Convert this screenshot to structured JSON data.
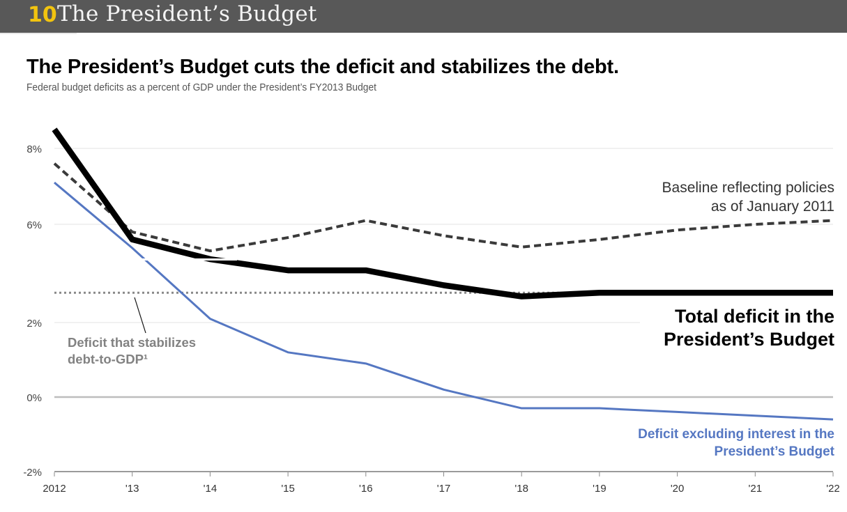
{
  "header": {
    "section_number": "10",
    "section_title": "The President’s Budget"
  },
  "headline": "The President’s Budget cuts the deficit and stabilizes the debt.",
  "subheadline": "Federal budget deficits as a percent of GDP under the President’s FY2013 Budget",
  "chart_data": {
    "type": "line",
    "title": "The President’s Budget cuts the deficit and stabilizes the debt.",
    "subtitle": "Federal budget deficits as a percent of GDP under the President’s FY2013 Budget",
    "xlabel": "",
    "ylabel": "",
    "x": [
      "2012",
      "'13",
      "'14",
      "'15",
      "'16",
      "'17",
      "'18",
      "'19",
      "'20",
      "'21",
      "'22"
    ],
    "y_ticks": [
      "8%",
      "6%",
      "2%",
      "0%",
      "-2%"
    ],
    "y_tick_values": [
      8,
      6,
      2,
      0,
      -2
    ],
    "ylim": [
      -2,
      8.5
    ],
    "grid": true,
    "series": [
      {
        "name": "Baseline reflecting policies as of January 2011",
        "style": "dashed",
        "color": "#3a3a3a",
        "values": [
          7.6,
          5.8,
          5.3,
          5.65,
          6.1,
          5.7,
          5.4,
          5.6,
          5.85,
          6.0,
          6.1
        ]
      },
      {
        "name": "Total deficit in the President’s Budget",
        "style": "thick-solid",
        "color": "#000000",
        "values": [
          8.5,
          5.6,
          3.7,
          3.4,
          3.4,
          3.0,
          2.7,
          2.8,
          2.8,
          2.8,
          2.8
        ]
      },
      {
        "name": "Deficit excluding interest in the President’s Budget",
        "style": "solid",
        "color": "#5577c2",
        "values": [
          7.1,
          4.0,
          2.1,
          1.2,
          0.9,
          0.2,
          -0.3,
          -0.3,
          -0.4,
          -0.5,
          -0.6
        ]
      },
      {
        "name": "Deficit that stabilizes debt-to-GDP¹",
        "style": "dotted",
        "color": "#888888",
        "values": [
          2.8,
          2.8,
          2.8,
          2.8,
          2.8,
          2.8,
          2.8,
          2.8,
          2.8,
          2.8,
          2.8
        ]
      }
    ],
    "annotations": [
      {
        "text_lines": [
          "Baseline reflecting policies",
          "as of January 2011"
        ]
      },
      {
        "text_lines": [
          "Total deficit in the",
          "President’s Budget"
        ]
      },
      {
        "text_lines": [
          "Deficit that stabilizes",
          "debt-to-GDP¹"
        ]
      },
      {
        "text_lines": [
          "Deficit excluding interest in the",
          "President’s Budget"
        ]
      }
    ]
  }
}
